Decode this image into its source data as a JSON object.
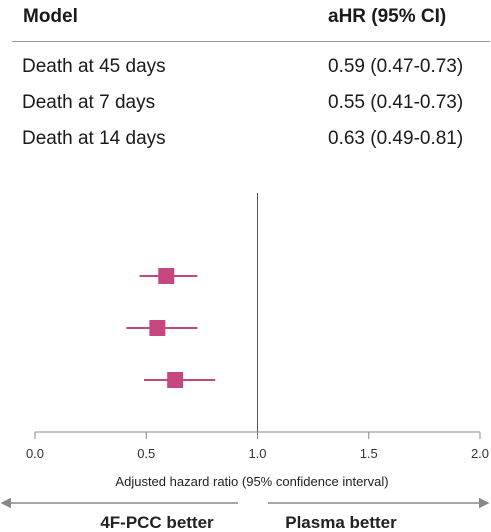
{
  "table": {
    "col_model": "Model",
    "col_ahr": "aHR (95% CI)",
    "rows": [
      {
        "model": "Death at 45 days",
        "ahr": "0.59 (0.47-0.73)"
      },
      {
        "model": "Death at 7 days",
        "ahr": "0.55 (0.41-0.73)"
      },
      {
        "model": "Death at 14 days",
        "ahr": "0.63 (0.49-0.81)"
      }
    ]
  },
  "chart_data": {
    "type": "scatter",
    "subtype": "forest-plot",
    "points": [
      {
        "label": "Death at 45 days",
        "estimate": 0.59,
        "lower": 0.47,
        "upper": 0.73
      },
      {
        "label": "Death at 7 days",
        "estimate": 0.55,
        "lower": 0.41,
        "upper": 0.73
      },
      {
        "label": "Death at 14 days",
        "estimate": 0.63,
        "lower": 0.49,
        "upper": 0.81
      }
    ],
    "xlim": [
      0.0,
      2.0
    ],
    "reference_line": 1.0,
    "xticks": [
      "0.0",
      "0.5",
      "1.0",
      "1.5",
      "2.0"
    ],
    "xlabel": "Adjusted hazard ratio (95% confidence interval)",
    "left_direction_label": "4F-PCC better",
    "right_direction_label": "Plasma better",
    "marker_color": "#c4487f",
    "grid": false
  }
}
